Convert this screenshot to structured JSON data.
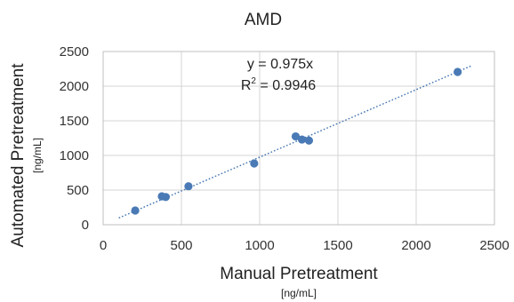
{
  "chart_data": {
    "type": "scatter",
    "title": "AMD",
    "xlabel": "Manual Pretreatment",
    "xunit": "[ng/mL]",
    "ylabel": "Automated Pretreatment",
    "yunit": "[ng/mL]",
    "xlim": [
      0,
      2500
    ],
    "ylim": [
      0,
      2500
    ],
    "xticks": [
      0,
      500,
      1000,
      1500,
      2000,
      2500
    ],
    "yticks": [
      0,
      500,
      1000,
      1500,
      2000,
      2500
    ],
    "grid": true,
    "colors": {
      "points": "#4a7ab5",
      "trendline": "#3f72b0",
      "grid": "#d4d4d4",
      "frame": "#bfbfbf"
    },
    "points": [
      {
        "x": 205,
        "y": 205
      },
      {
        "x": 375,
        "y": 410
      },
      {
        "x": 400,
        "y": 400
      },
      {
        "x": 545,
        "y": 555
      },
      {
        "x": 965,
        "y": 885
      },
      {
        "x": 1230,
        "y": 1275
      },
      {
        "x": 1270,
        "y": 1230
      },
      {
        "x": 1315,
        "y": 1215
      },
      {
        "x": 2265,
        "y": 2205
      }
    ],
    "trendline": {
      "slope": 0.975,
      "x_range": [
        100,
        2350
      ]
    },
    "equation": "y = 0.975x",
    "r2_prefix": "R",
    "r2_sup": "2",
    "r2_value": " = 0.9946"
  }
}
